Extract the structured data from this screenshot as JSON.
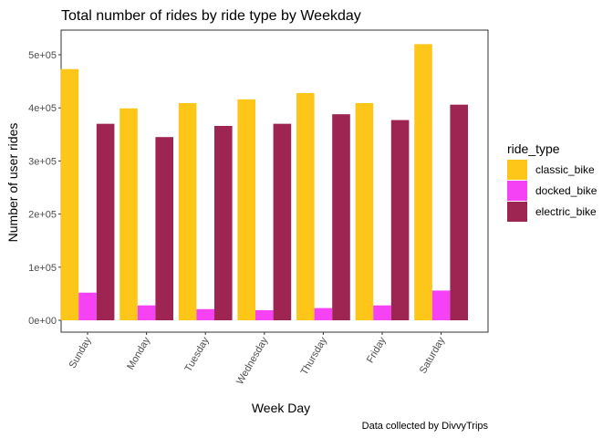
{
  "chart_data": {
    "type": "bar",
    "title": "Total number of rides by ride type by Weekday",
    "xlabel": "Week Day",
    "ylabel": "Number of user rides",
    "caption": "Data collected by DivvyTrips",
    "categories": [
      "Sunday",
      "Monday",
      "Tuesday",
      "Wednesday",
      "Thursday",
      "Friday",
      "Saturday"
    ],
    "ylim": [
      0,
      500000
    ],
    "yticks": [
      0,
      100000,
      200000,
      300000,
      400000,
      500000
    ],
    "ytick_labels": [
      "0e+00",
      "1e+05",
      "2e+05",
      "3e+05",
      "4e+05",
      "5e+05"
    ],
    "legend_title": "ride_type",
    "legend_position": "right",
    "grid": false,
    "series": [
      {
        "name": "classic_bike",
        "color": "#FFC61A",
        "values": [
          473000,
          399000,
          409000,
          416000,
          428000,
          409000,
          520000
        ]
      },
      {
        "name": "docked_bike",
        "color": "#F542F5",
        "values": [
          52000,
          28000,
          21000,
          19000,
          23000,
          28000,
          56000
        ]
      },
      {
        "name": "electric_bike",
        "color": "#9E2452",
        "values": [
          370000,
          345000,
          366000,
          370000,
          388000,
          377000,
          406000
        ]
      }
    ]
  }
}
